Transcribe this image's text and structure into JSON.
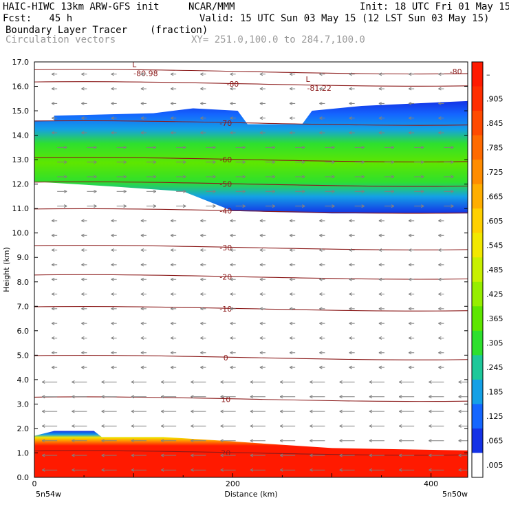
{
  "header": {
    "model": "HAIC-HIWC 13km ARW-GFS init",
    "org": "NCAR/MMM",
    "init": "Init: 18 UTC Fri 01 May 15",
    "fcst": "Fcst:   45 h",
    "valid": "Valid: 15 UTC Sun 03 May 15 (12 LST Sun 03 May 15)",
    "field": "Boundary Layer Tracer",
    "units": "(fraction)",
    "vectors": "Circulation vectors",
    "xy": "XY= 251.0,100.0 to 284.7,100.0"
  },
  "chart_data": {
    "type": "heatmap",
    "title": "Boundary Layer Tracer",
    "xlabel": "Distance (km)",
    "ylabel": "Height (km)",
    "xlim": [
      0,
      437
    ],
    "ylim": [
      0,
      17
    ],
    "x_ticks": [
      0,
      200,
      400
    ],
    "y_ticks": [
      "0.0",
      "1.0",
      "2.0",
      "3.0",
      "4.0",
      "5.0",
      "6.0",
      "7.0",
      "8.0",
      "9.0",
      "10.0",
      "11.0",
      "12.0",
      "13.0",
      "14.0",
      "15.0",
      "16.0",
      "17.0"
    ],
    "x_endpoints": [
      "5n54w",
      "5n50w"
    ],
    "colorbar": {
      "labels": [
        "–",
        ".905",
        ".845",
        ".785",
        ".725",
        ".665",
        ".605",
        ".545",
        ".485",
        ".425",
        ".365",
        ".305",
        ".245",
        ".185",
        ".125",
        ".065",
        ".005"
      ],
      "colors": [
        "#ff1a00",
        "#ff2e00",
        "#ff4a00",
        "#ff6a00",
        "#ff8c00",
        "#ffae00",
        "#ffd000",
        "#f2e800",
        "#c8f000",
        "#96ee00",
        "#5ee600",
        "#2ee02e",
        "#1ec89a",
        "#14a0e6",
        "#1466ff",
        "#1432e6",
        "#ffffff"
      ]
    },
    "temperature_contours": [
      {
        "label": "-80",
        "height_km": 16.6
      },
      {
        "label": "-80",
        "height_km": 16.1
      },
      {
        "label": "-70",
        "height_km": 14.5
      },
      {
        "label": "-60",
        "height_km": 13.0
      },
      {
        "label": "-50",
        "height_km": 12.0
      },
      {
        "label": "-40",
        "height_km": 10.9
      },
      {
        "label": "-30",
        "height_km": 9.4
      },
      {
        "label": "-20",
        "height_km": 8.2
      },
      {
        "label": "-10",
        "height_km": 6.9
      },
      {
        "label": "0",
        "height_km": 4.9
      },
      {
        "label": "10",
        "height_km": 3.2
      },
      {
        "label": "20",
        "height_km": 1.0
      }
    ],
    "lows": [
      {
        "symbol": "L",
        "value": "-80.98",
        "x_km": 100,
        "height_km": 16.7
      },
      {
        "symbol": "L",
        "value": "-81.22",
        "x_km": 275,
        "height_km": 16.1
      }
    ],
    "tracer_layers": [
      {
        "name": "upper",
        "base_km_west": 12.0,
        "base_km_east": 10.8,
        "top_km_west": 14.8,
        "top_km_east": 15.4,
        "peak": 0.3
      },
      {
        "name": "boundary",
        "top_km_west": 2.0,
        "top_km_east": 1.1,
        "peak": 1.0
      }
    ]
  }
}
